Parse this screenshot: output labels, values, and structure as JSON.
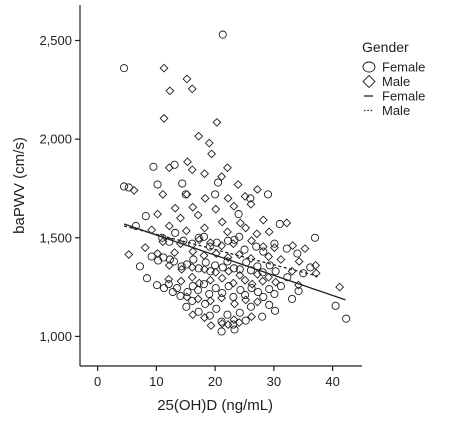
{
  "chart_data": {
    "type": "scatter",
    "xlabel": "25(OH)D (ng/mL)",
    "ylabel": "baPWV (cm/s)",
    "xlim": [
      -3,
      45
    ],
    "ylim": [
      850,
      2680
    ],
    "x_ticks": [
      0,
      10,
      20,
      30,
      40
    ],
    "x_tick_labels": [
      "0",
      "10",
      "20",
      "30",
      "40"
    ],
    "y_ticks": [
      1000,
      1500,
      2000,
      2500
    ],
    "y_tick_labels": [
      "1,000",
      "1,500",
      "2,000",
      "2,500"
    ],
    "grid": false,
    "legend": {
      "placement": "right",
      "title": "Gender",
      "entries": [
        {
          "label": "Female",
          "marker": "circle"
        },
        {
          "label": "Male",
          "marker": "diamond"
        },
        {
          "label": "Female",
          "line": "solid"
        },
        {
          "label": "Male",
          "line": "dotted"
        }
      ]
    },
    "series": [
      {
        "name": "Female",
        "marker": "circle",
        "points": [
          [
            4.5,
            2360
          ],
          [
            21.3,
            2530
          ],
          [
            4.5,
            1760
          ],
          [
            5.3,
            1755
          ],
          [
            10.2,
            1770
          ],
          [
            14.4,
            1775
          ],
          [
            20.5,
            1780
          ],
          [
            9.5,
            1860
          ],
          [
            13.1,
            1870
          ],
          [
            15,
            1720
          ],
          [
            20,
            1720
          ],
          [
            26,
            1700
          ],
          [
            29,
            1720
          ],
          [
            24,
            1620
          ],
          [
            31,
            1570
          ],
          [
            37,
            1500
          ],
          [
            6.5,
            1560
          ],
          [
            8.2,
            1610
          ],
          [
            11,
            1500
          ],
          [
            12.2,
            1480
          ],
          [
            13.2,
            1525
          ],
          [
            14.6,
            1485
          ],
          [
            16.1,
            1470
          ],
          [
            17.2,
            1500
          ],
          [
            18.1,
            1505
          ],
          [
            19.1,
            1455
          ],
          [
            20.3,
            1475
          ],
          [
            22.2,
            1485
          ],
          [
            23.3,
            1490
          ],
          [
            24.1,
            1505
          ],
          [
            25,
            1440
          ],
          [
            27,
            1455
          ],
          [
            28.2,
            1430
          ],
          [
            30.1,
            1470
          ],
          [
            32.2,
            1445
          ],
          [
            34,
            1420
          ],
          [
            9.2,
            1405
          ],
          [
            10.3,
            1385
          ],
          [
            11.2,
            1400
          ],
          [
            12.3,
            1390
          ],
          [
            13,
            1380
          ],
          [
            14.3,
            1355
          ],
          [
            15.2,
            1365
          ],
          [
            16.3,
            1390
          ],
          [
            17.2,
            1345
          ],
          [
            18.4,
            1375
          ],
          [
            19.2,
            1330
          ],
          [
            20,
            1360
          ],
          [
            21.3,
            1350
          ],
          [
            22.1,
            1380
          ],
          [
            23.2,
            1345
          ],
          [
            24.2,
            1340
          ],
          [
            25.3,
            1375
          ],
          [
            26.1,
            1335
          ],
          [
            27.2,
            1355
          ],
          [
            28.1,
            1325
          ],
          [
            29.3,
            1360
          ],
          [
            30.3,
            1330
          ],
          [
            32.3,
            1300
          ],
          [
            35,
            1320
          ],
          [
            36.2,
            1350
          ],
          [
            7.2,
            1355
          ],
          [
            8.4,
            1295
          ],
          [
            10.1,
            1260
          ],
          [
            11.3,
            1245
          ],
          [
            12.1,
            1265
          ],
          [
            12.8,
            1225
          ],
          [
            13.5,
            1245
          ],
          [
            14.1,
            1205
          ],
          [
            15.3,
            1225
          ],
          [
            16.2,
            1255
          ],
          [
            17.1,
            1235
          ],
          [
            18.1,
            1265
          ],
          [
            19,
            1215
          ],
          [
            20.1,
            1245
          ],
          [
            21.2,
            1220
          ],
          [
            22.3,
            1255
          ],
          [
            23.1,
            1200
          ],
          [
            24.3,
            1235
          ],
          [
            25.1,
            1210
          ],
          [
            26.2,
            1245
          ],
          [
            27.3,
            1225
          ],
          [
            28.2,
            1200
          ],
          [
            29.2,
            1240
          ],
          [
            30.1,
            1215
          ],
          [
            31.2,
            1255
          ],
          [
            33.1,
            1190
          ],
          [
            34.2,
            1230
          ],
          [
            15.1,
            1150
          ],
          [
            16.1,
            1180
          ],
          [
            17.2,
            1125
          ],
          [
            18.3,
            1165
          ],
          [
            19.1,
            1105
          ],
          [
            20.2,
            1140
          ],
          [
            21.1,
            1075
          ],
          [
            22.1,
            1110
          ],
          [
            23.1,
            1060
          ],
          [
            24.2,
            1120
          ],
          [
            25.2,
            1080
          ],
          [
            26.1,
            1150
          ],
          [
            28,
            1100
          ],
          [
            29.2,
            1160
          ],
          [
            30.2,
            1130
          ],
          [
            40.5,
            1155
          ],
          [
            42.3,
            1090
          ],
          [
            21.1,
            1025
          ],
          [
            23.3,
            1035
          ]
        ]
      },
      {
        "name": "Male",
        "marker": "diamond",
        "points": [
          [
            11.3,
            2360
          ],
          [
            15.2,
            2305
          ],
          [
            12.3,
            2245
          ],
          [
            16.1,
            2255
          ],
          [
            11.3,
            2105
          ],
          [
            20.3,
            2085
          ],
          [
            17.2,
            2015
          ],
          [
            19,
            1980
          ],
          [
            19.4,
            1925
          ],
          [
            15.3,
            1885
          ],
          [
            22.1,
            1855
          ],
          [
            12.2,
            1855
          ],
          [
            16.1,
            1845
          ],
          [
            18.2,
            1825
          ],
          [
            21.1,
            1810
          ],
          [
            23.9,
            1770
          ],
          [
            6.2,
            1740
          ],
          [
            11.1,
            1720
          ],
          [
            15.2,
            1720
          ],
          [
            18.3,
            1700
          ],
          [
            22.2,
            1700
          ],
          [
            25.1,
            1710
          ],
          [
            27.2,
            1745
          ],
          [
            13.2,
            1650
          ],
          [
            16.2,
            1655
          ],
          [
            20.1,
            1645
          ],
          [
            23.2,
            1660
          ],
          [
            26.1,
            1670
          ],
          [
            10.2,
            1620
          ],
          [
            14.1,
            1600
          ],
          [
            17.1,
            1615
          ],
          [
            21.2,
            1580
          ],
          [
            24.3,
            1575
          ],
          [
            28.2,
            1590
          ],
          [
            32.2,
            1575
          ],
          [
            9.2,
            1540
          ],
          [
            12.2,
            1560
          ],
          [
            15.1,
            1535
          ],
          [
            18.2,
            1550
          ],
          [
            22.1,
            1530
          ],
          [
            25.2,
            1550
          ],
          [
            27.1,
            1520
          ],
          [
            29.2,
            1530
          ],
          [
            11.1,
            1480
          ],
          [
            14.1,
            1470
          ],
          [
            17.3,
            1490
          ],
          [
            19.2,
            1475
          ],
          [
            21.1,
            1460
          ],
          [
            23.1,
            1470
          ],
          [
            26.2,
            1485
          ],
          [
            28.2,
            1455
          ],
          [
            30.1,
            1450
          ],
          [
            33.2,
            1460
          ],
          [
            35.3,
            1445
          ],
          [
            8.1,
            1450
          ],
          [
            10.2,
            1420
          ],
          [
            13.1,
            1425
          ],
          [
            16.2,
            1430
          ],
          [
            18.1,
            1410
          ],
          [
            20.2,
            1420
          ],
          [
            22.2,
            1400
          ],
          [
            24.1,
            1415
          ],
          [
            26.1,
            1395
          ],
          [
            29.1,
            1405
          ],
          [
            31.2,
            1390
          ],
          [
            34.3,
            1380
          ],
          [
            37.1,
            1360
          ],
          [
            5.3,
            1415
          ],
          [
            12.2,
            1360
          ],
          [
            14.3,
            1340
          ],
          [
            16.1,
            1350
          ],
          [
            18.2,
            1340
          ],
          [
            20.1,
            1325
          ],
          [
            22.3,
            1330
          ],
          [
            24.2,
            1310
          ],
          [
            27.2,
            1315
          ],
          [
            29.1,
            1300
          ],
          [
            33.1,
            1330
          ],
          [
            37.2,
            1320
          ],
          [
            12.1,
            1290
          ],
          [
            14.2,
            1280
          ],
          [
            16.1,
            1300
          ],
          [
            17.3,
            1270
          ],
          [
            19.2,
            1285
          ],
          [
            21.2,
            1295
          ],
          [
            23.1,
            1270
          ],
          [
            25.1,
            1285
          ],
          [
            26.3,
            1265
          ],
          [
            28.1,
            1280
          ],
          [
            30.3,
            1275
          ],
          [
            34.2,
            1260
          ],
          [
            41.2,
            1250
          ],
          [
            15.2,
            1200
          ],
          [
            17.1,
            1190
          ],
          [
            19.2,
            1180
          ],
          [
            21.1,
            1195
          ],
          [
            23.3,
            1165
          ],
          [
            25.2,
            1185
          ],
          [
            27.2,
            1175
          ],
          [
            16.2,
            1110
          ],
          [
            18.2,
            1095
          ],
          [
            19.3,
            1055
          ],
          [
            21.2,
            1065
          ],
          [
            22.2,
            1060
          ],
          [
            23.2,
            1085
          ],
          [
            24.1,
            1070
          ],
          [
            26.2,
            1100
          ]
        ]
      }
    ],
    "regression": [
      {
        "name": "Female",
        "style": "solid",
        "x": [
          4.5,
          42.2
        ],
        "y": [
          1570,
          1185
        ]
      },
      {
        "name": "Male",
        "style": "dotted",
        "x": [
          4.5,
          37.5
        ],
        "y": [
          1560,
          1305
        ]
      }
    ]
  }
}
